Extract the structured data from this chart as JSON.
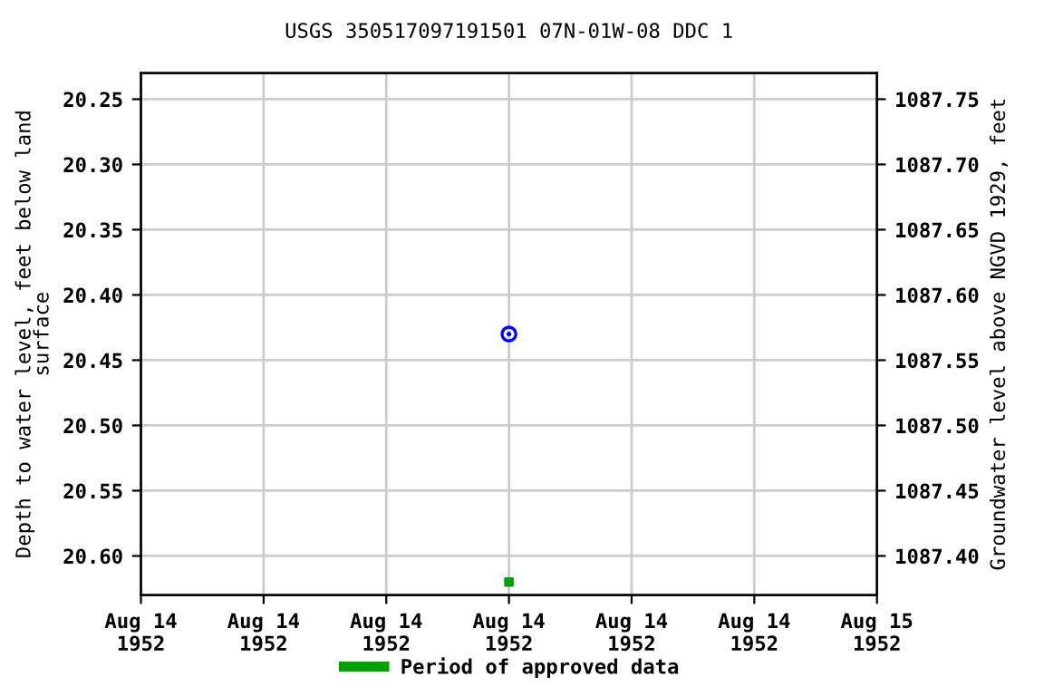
{
  "chart_data": {
    "type": "scatter",
    "title": "USGS 350517097191501 07N-01W-08 DDC 1",
    "ylabel": "Depth to water level, feet below land\nsurface",
    "y2label": "Groundwater level above NGVD 1929, feet",
    "x": [
      "1952-08-14T12:00"
    ],
    "series": [
      {
        "color": "#0000ff",
        "values": [
          20.43
        ],
        "marker": "circle"
      },
      {
        "name": "Period of approved data",
        "color": "#00a000",
        "values": [
          20.62
        ],
        "marker": "square"
      }
    ],
    "xlim": [
      "1952-08-14T00:00",
      "1952-08-15T00:00"
    ],
    "xticks": [
      {
        "value": "1952-08-14T00:00",
        "label": "Aug 14\n1952"
      },
      {
        "value": "1952-08-14T04:00",
        "label": "Aug 14\n1952"
      },
      {
        "value": "1952-08-14T08:00",
        "label": "Aug 14\n1952"
      },
      {
        "value": "1952-08-14T12:00",
        "label": "Aug 14\n1952"
      },
      {
        "value": "1952-08-14T16:00",
        "label": "Aug 14\n1952"
      },
      {
        "value": "1952-08-14T20:00",
        "label": "Aug 14\n1952"
      },
      {
        "value": "1952-08-15T00:00",
        "label": "Aug 15\n1952"
      }
    ],
    "ylim": [
      20.63,
      20.23
    ],
    "yticks": [
      {
        "value": 20.25,
        "label": "20.25"
      },
      {
        "value": 20.3,
        "label": "20.30"
      },
      {
        "value": 20.35,
        "label": "20.35"
      },
      {
        "value": 20.4,
        "label": "20.40"
      },
      {
        "value": 20.45,
        "label": "20.45"
      },
      {
        "value": 20.5,
        "label": "20.50"
      },
      {
        "value": 20.55,
        "label": "20.55"
      },
      {
        "value": 20.6,
        "label": "20.60"
      }
    ],
    "y2lim": [
      1087.37,
      1087.77
    ],
    "y2ticks": [
      {
        "value": 1087.4,
        "label": "1087.40"
      },
      {
        "value": 1087.45,
        "label": "1087.45"
      },
      {
        "value": 1087.5,
        "label": "1087.50"
      },
      {
        "value": 1087.55,
        "label": "1087.55"
      },
      {
        "value": 1087.6,
        "label": "1087.60"
      },
      {
        "value": 1087.65,
        "label": "1087.65"
      },
      {
        "value": 1087.7,
        "label": "1087.70"
      },
      {
        "value": 1087.75,
        "label": "1087.75"
      }
    ],
    "grid": true,
    "legend": "bottom"
  }
}
